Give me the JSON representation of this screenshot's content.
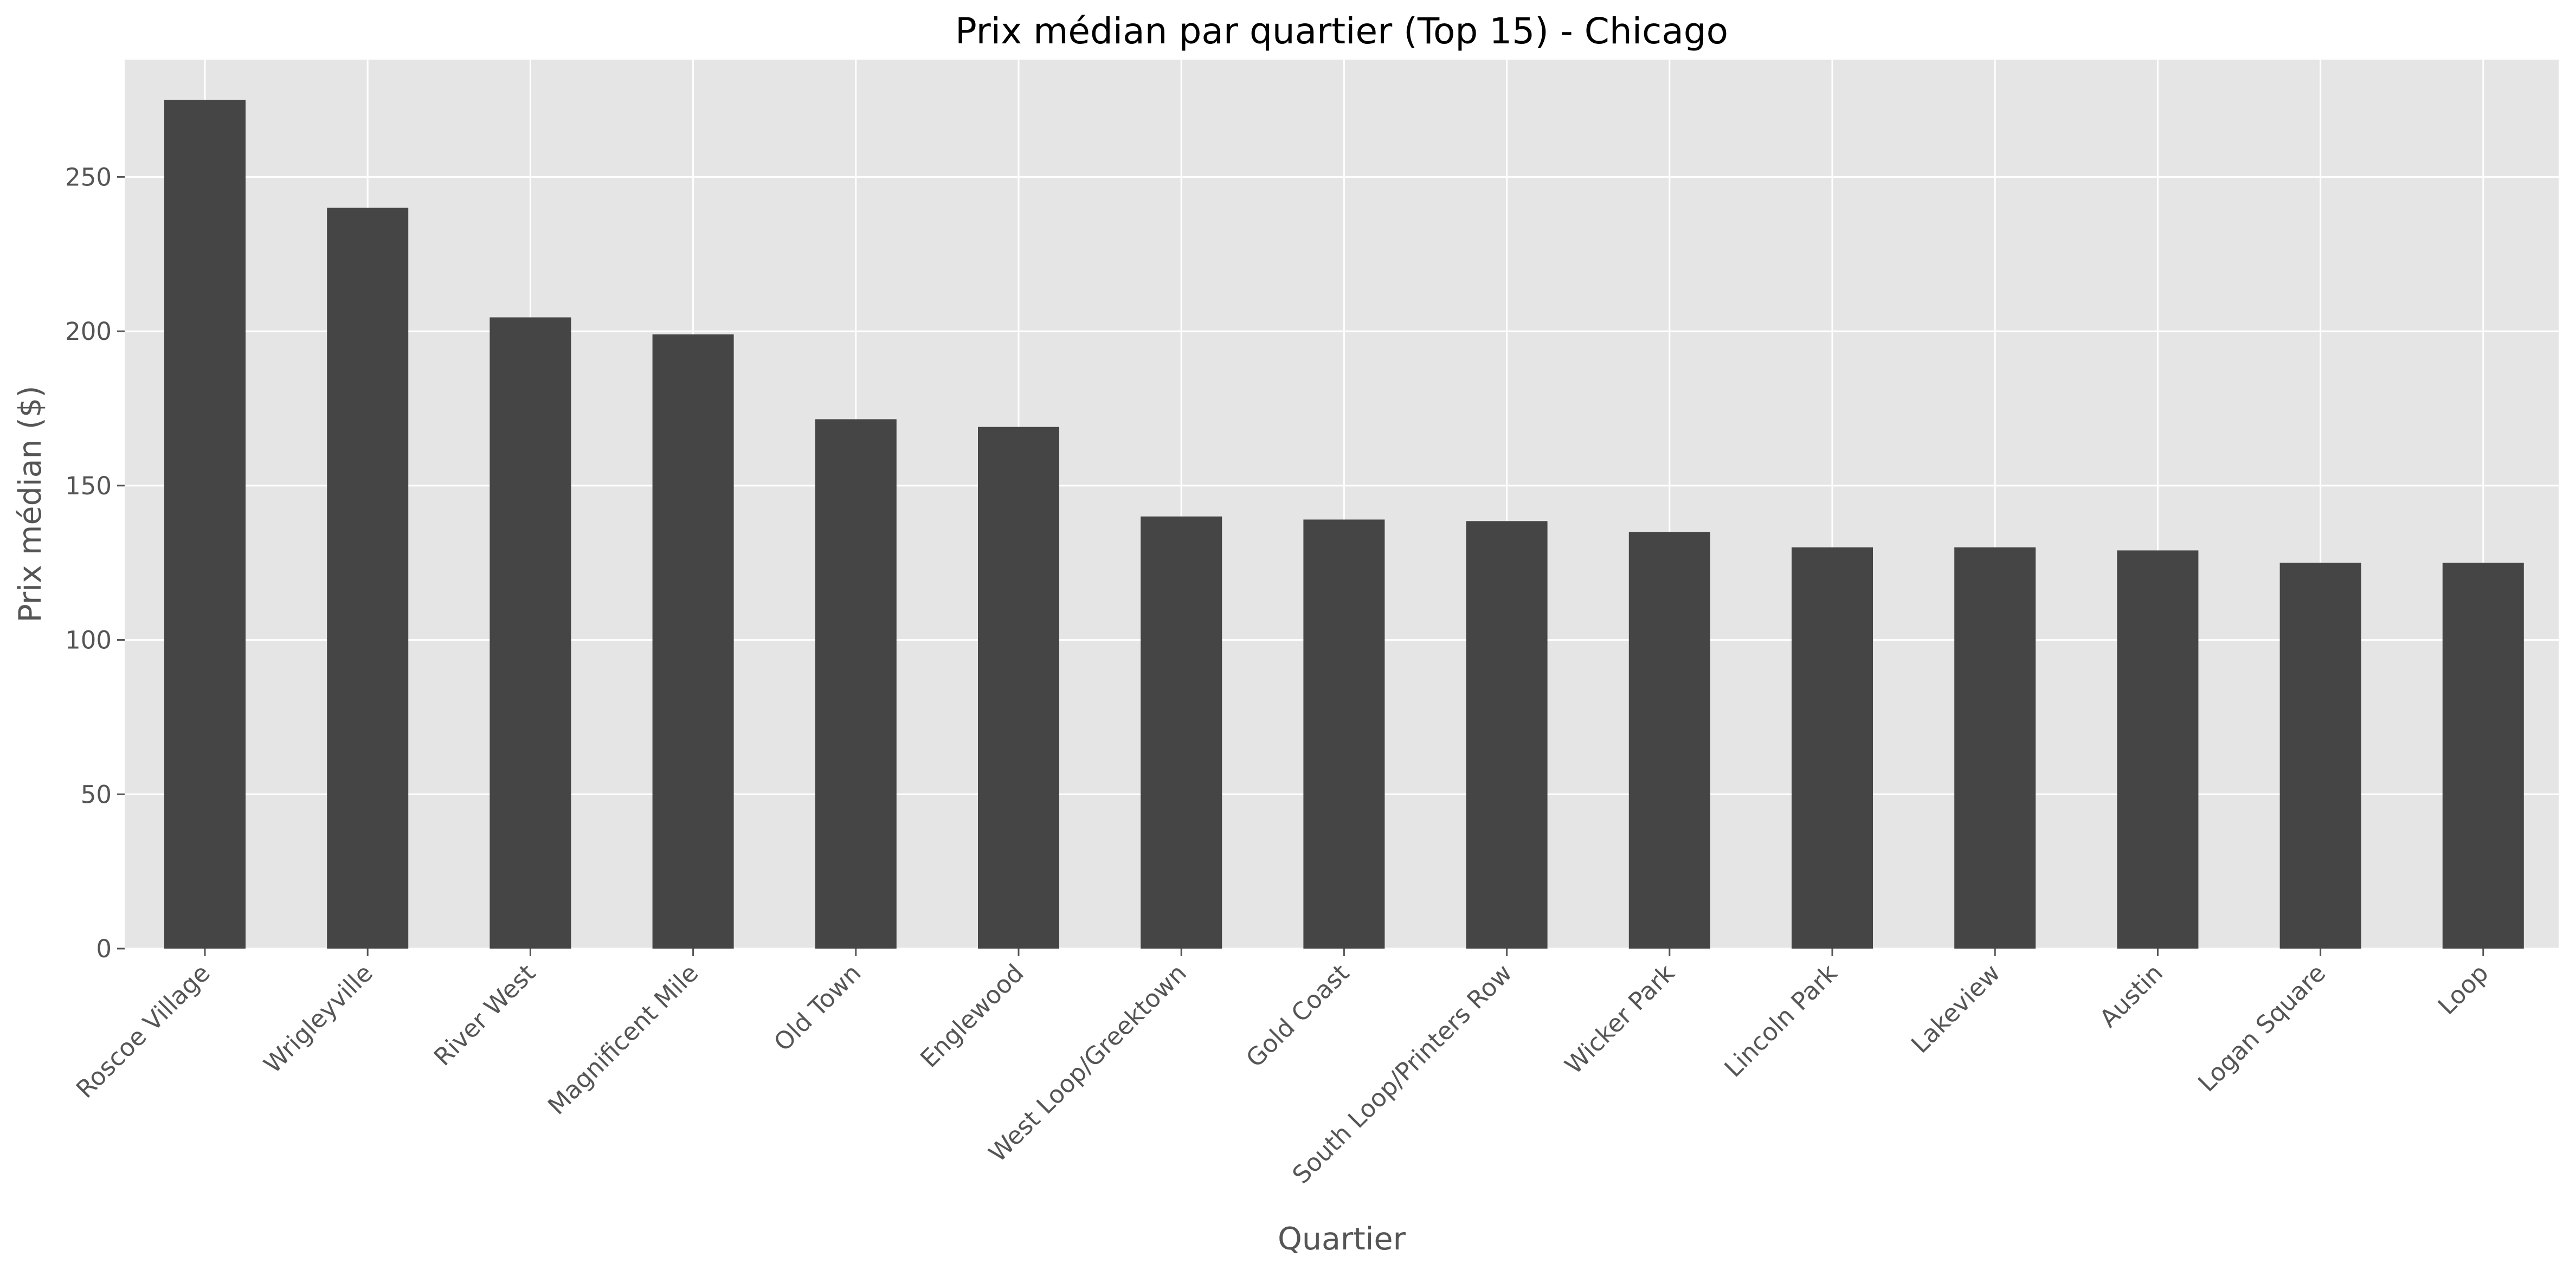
{
  "chart_data": {
    "type": "bar",
    "title": "Prix médian par quartier (Top 15) - Chicago",
    "xlabel": "Quartier",
    "ylabel": "Prix médian ($)",
    "categories": [
      "Roscoe Village",
      "Wrigleyville",
      "River West",
      "Magnificent Mile",
      "Old Town",
      "Englewood",
      "West Loop/Greektown",
      "Gold Coast",
      "South Loop/Printers Row",
      "Wicker Park",
      "Lincoln Park",
      "Lakeview",
      "Austin",
      "Logan Square",
      "Loop"
    ],
    "values": [
      275,
      240,
      204.5,
      199,
      171.5,
      169,
      140,
      139,
      138.5,
      135,
      130,
      130,
      129,
      125,
      125
    ],
    "ylim": [
      0,
      288
    ],
    "yticks": [
      0,
      50,
      100,
      150,
      200,
      250
    ],
    "grid": true,
    "bar_color": "#454545",
    "background_color": "#e5e5e5"
  }
}
